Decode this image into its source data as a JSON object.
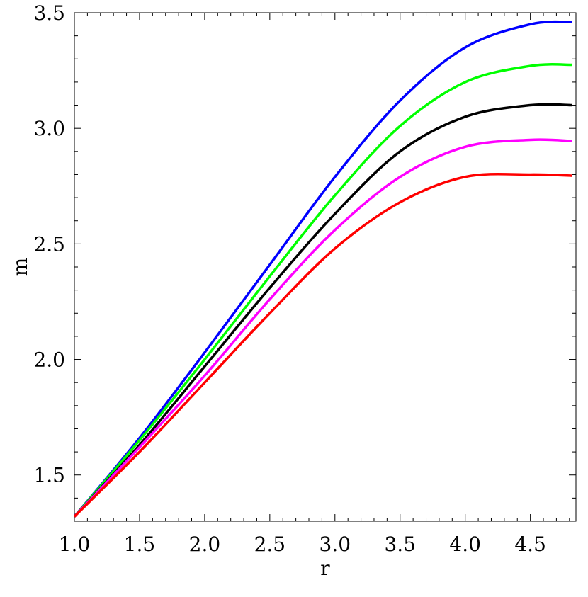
{
  "chart_data": {
    "type": "line",
    "title": "",
    "xlabel": "r",
    "ylabel": "m",
    "xlim": [
      1.0,
      4.85
    ],
    "ylim": [
      1.3,
      3.5
    ],
    "xticks": [
      "1.0",
      "1.5",
      "2.0",
      "2.5",
      "3.0",
      "3.5",
      "4.0",
      "4.5"
    ],
    "yticks": [
      "1.5",
      "2.0",
      "2.5",
      "3.0",
      "3.5"
    ],
    "grid": false,
    "legend": "none",
    "series": [
      {
        "color": "#0000ff",
        "x": [
          1.0,
          1.5,
          2.0,
          2.5,
          3.0,
          3.5,
          4.0,
          4.5,
          4.82
        ],
        "y": [
          1.32,
          1.66,
          2.03,
          2.41,
          2.79,
          3.12,
          3.35,
          3.45,
          3.46
        ]
      },
      {
        "color": "#00ff00",
        "x": [
          1.0,
          1.5,
          2.0,
          2.5,
          3.0,
          3.5,
          4.0,
          4.5,
          4.82
        ],
        "y": [
          1.32,
          1.65,
          2.0,
          2.36,
          2.71,
          3.01,
          3.2,
          3.27,
          3.275
        ]
      },
      {
        "color": "#000000",
        "x": [
          1.0,
          1.5,
          2.0,
          2.5,
          3.0,
          3.5,
          4.0,
          4.5,
          4.82
        ],
        "y": [
          1.32,
          1.63,
          1.97,
          2.31,
          2.63,
          2.9,
          3.05,
          3.1,
          3.1
        ]
      },
      {
        "color": "#ff00ff",
        "x": [
          1.0,
          1.5,
          2.0,
          2.5,
          3.0,
          3.5,
          4.0,
          4.5,
          4.82
        ],
        "y": [
          1.32,
          1.62,
          1.93,
          2.26,
          2.56,
          2.79,
          2.92,
          2.95,
          2.945
        ]
      },
      {
        "color": "#ff0000",
        "x": [
          1.0,
          1.5,
          2.0,
          2.5,
          3.0,
          3.5,
          4.0,
          4.5,
          4.82
        ],
        "y": [
          1.32,
          1.6,
          1.9,
          2.2,
          2.48,
          2.68,
          2.79,
          2.8,
          2.795
        ]
      }
    ]
  }
}
